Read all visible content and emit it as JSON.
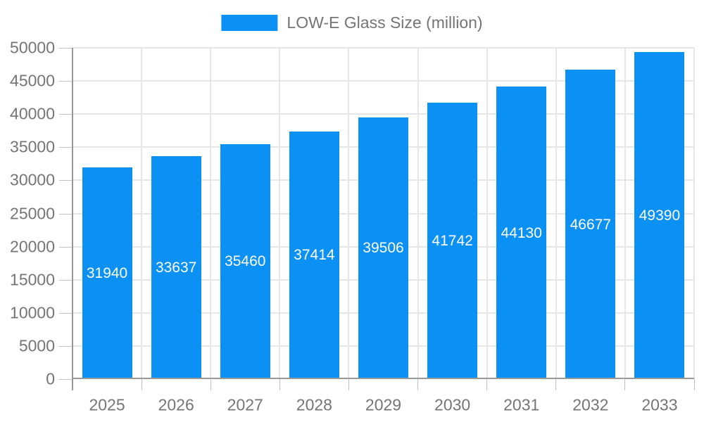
{
  "legend": {
    "label": "LOW-E Glass Size (million)"
  },
  "colors": {
    "bar": "#0B90F3",
    "grid": "#E6E6E6",
    "axis": "#999999",
    "tick": "#C2C2C2",
    "tick_text": "#757575",
    "bar_label_text": "#FFFFFF",
    "background": "#FFFFFF"
  },
  "chart_data": {
    "type": "bar",
    "title": "LOW-E Glass Size (million)",
    "categories": [
      "2025",
      "2026",
      "2027",
      "2028",
      "2029",
      "2030",
      "2031",
      "2032",
      "2033"
    ],
    "values": [
      31940,
      33637,
      35460,
      37414,
      39506,
      41742,
      44130,
      46677,
      49390
    ],
    "xlabel": "",
    "ylabel": "",
    "ylim": [
      0,
      50000
    ],
    "ytick_step": 5000,
    "ytick_labels": [
      "0",
      "5000",
      "10000",
      "15000",
      "20000",
      "25000",
      "30000",
      "35000",
      "40000",
      "45000",
      "50000"
    ],
    "grid": true,
    "legend_position": "top-center",
    "bar_value_labels": "inside-center"
  }
}
